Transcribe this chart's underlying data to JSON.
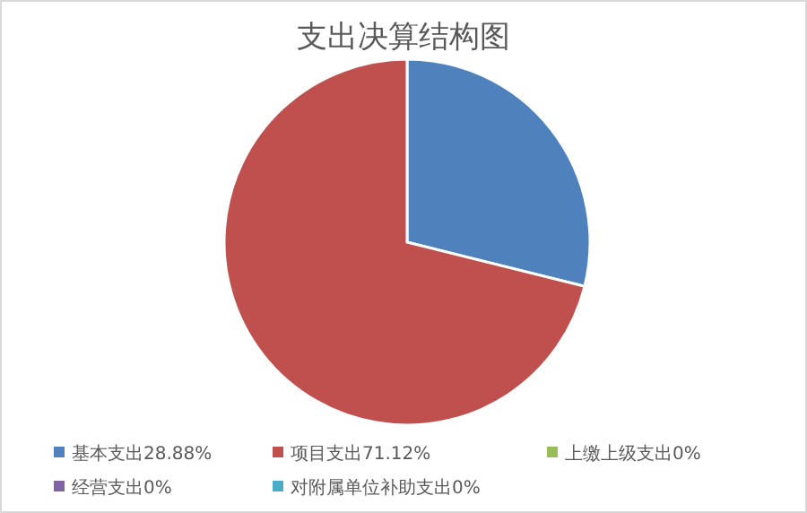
{
  "chart_data": {
    "type": "pie",
    "title": "支出决算结构图",
    "categories": [
      "基本支出",
      "项目支出",
      "上缴上级支出",
      "经营支出",
      "对附属单位补助支出"
    ],
    "values": [
      28.88,
      71.12,
      0,
      0,
      0
    ],
    "value_labels": [
      "28.88%",
      "71.12%",
      "0%",
      "0%",
      "0%"
    ],
    "colors": [
      "#4f81bd",
      "#c0504d",
      "#9bbb59",
      "#8064a2",
      "#4bacc6"
    ],
    "legend": "bottom"
  }
}
